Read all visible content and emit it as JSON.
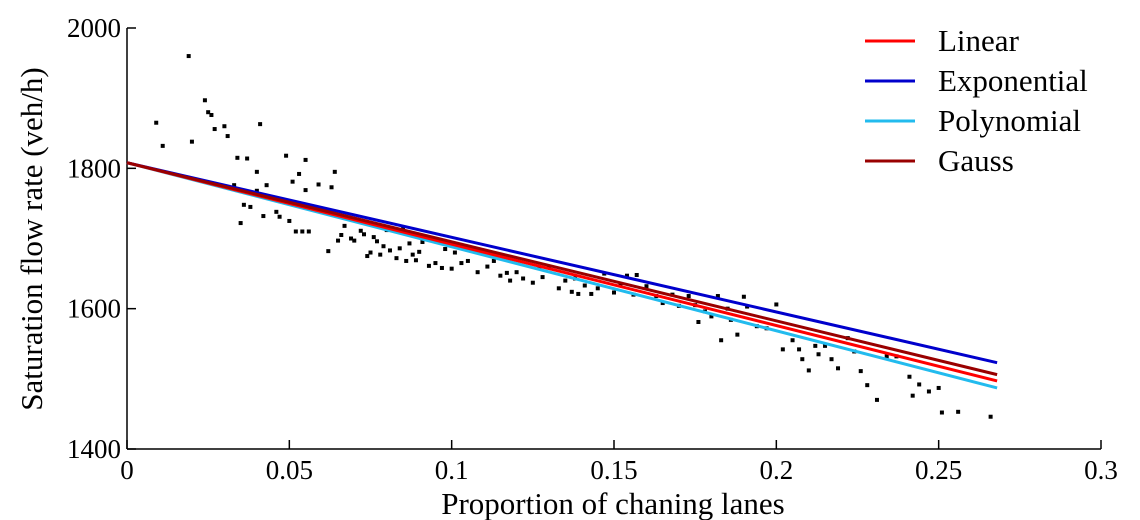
{
  "chart_data": {
    "type": "scatter",
    "title": "",
    "xlabel": "Proportion of chaning lanes",
    "ylabel": "Saturation flow rate (veh/h)",
    "xlim": [
      0,
      0.3
    ],
    "ylim": [
      1400,
      2000
    ],
    "xticks": [
      0,
      0.05,
      0.1,
      0.15,
      0.2,
      0.25,
      0.3
    ],
    "xtick_labels": [
      "0",
      "0.05",
      "0.1",
      "0.15",
      "0.2",
      "0.25",
      "0.3"
    ],
    "yticks": [
      1400,
      1600,
      1800,
      2000
    ],
    "ytick_labels": [
      "1400",
      "1600",
      "1800",
      "2000"
    ],
    "grid": false,
    "legend_position": "top-right",
    "points": {
      "color": "#000000",
      "x": [
        0.009,
        0.011,
        0.019,
        0.02,
        0.024,
        0.025,
        0.026,
        0.027,
        0.03,
        0.031,
        0.033,
        0.034,
        0.035,
        0.036,
        0.037,
        0.038,
        0.04,
        0.04,
        0.041,
        0.042,
        0.043,
        0.046,
        0.047,
        0.049,
        0.05,
        0.051,
        0.052,
        0.053,
        0.054,
        0.055,
        0.055,
        0.056,
        0.059,
        0.062,
        0.063,
        0.064,
        0.065,
        0.066,
        0.067,
        0.069,
        0.07,
        0.072,
        0.073,
        0.074,
        0.075,
        0.076,
        0.077,
        0.078,
        0.079,
        0.08,
        0.081,
        0.083,
        0.084,
        0.085,
        0.086,
        0.087,
        0.088,
        0.089,
        0.09,
        0.091,
        0.093,
        0.095,
        0.097,
        0.098,
        0.1,
        0.101,
        0.103,
        0.105,
        0.108,
        0.111,
        0.113,
        0.115,
        0.117,
        0.118,
        0.12,
        0.122,
        0.125,
        0.127,
        0.128,
        0.13,
        0.133,
        0.135,
        0.137,
        0.138,
        0.139,
        0.141,
        0.143,
        0.145,
        0.147,
        0.15,
        0.152,
        0.154,
        0.156,
        0.157,
        0.16,
        0.163,
        0.165,
        0.168,
        0.17,
        0.173,
        0.175,
        0.176,
        0.178,
        0.18,
        0.182,
        0.183,
        0.185,
        0.186,
        0.188,
        0.19,
        0.191,
        0.194,
        0.197,
        0.2,
        0.202,
        0.205,
        0.207,
        0.208,
        0.21,
        0.212,
        0.213,
        0.215,
        0.217,
        0.219,
        0.222,
        0.224,
        0.226,
        0.228,
        0.231,
        0.234,
        0.237,
        0.241,
        0.242,
        0.244,
        0.247,
        0.25,
        0.251,
        0.256,
        0.266
      ],
      "y": [
        1865,
        1832,
        1960,
        1838,
        1897,
        1880,
        1876,
        1856,
        1860,
        1846,
        1776,
        1815,
        1722,
        1748,
        1814,
        1745,
        1795,
        1768,
        1863,
        1732,
        1776,
        1738,
        1731,
        1818,
        1725,
        1781,
        1710,
        1792,
        1710,
        1812,
        1769,
        1710,
        1777,
        1682,
        1773,
        1795,
        1697,
        1705,
        1718,
        1700,
        1697,
        1711,
        1706,
        1675,
        1680,
        1702,
        1696,
        1677,
        1689,
        1712,
        1683,
        1672,
        1686,
        1713,
        1668,
        1693,
        1677,
        1669,
        1681,
        1695,
        1661,
        1665,
        1658,
        1685,
        1657,
        1680,
        1665,
        1668,
        1652,
        1660,
        1668,
        1647,
        1651,
        1640,
        1652,
        1643,
        1637,
        1658,
        1645,
        1660,
        1629,
        1640,
        1624,
        1643,
        1621,
        1633,
        1621,
        1629,
        1650,
        1623,
        1635,
        1647,
        1620,
        1648,
        1632,
        1618,
        1608,
        1620,
        1604,
        1618,
        1605,
        1581,
        1596,
        1589,
        1618,
        1555,
        1600,
        1584,
        1563,
        1617,
        1603,
        1575,
        1572,
        1606,
        1542,
        1555,
        1542,
        1528,
        1512,
        1547,
        1535,
        1547,
        1528,
        1515,
        1558,
        1539,
        1511,
        1491,
        1470,
        1532,
        1532,
        1503,
        1476,
        1492,
        1482,
        1487,
        1452,
        1453,
        1446
      ]
    },
    "series": [
      {
        "name": "Linear",
        "color": "#ff0000",
        "x": [
          0,
          0.268
        ],
        "y": [
          1808,
          1497
        ]
      },
      {
        "name": "Exponential",
        "color": "#0000cc",
        "x": [
          0,
          0.268
        ],
        "y": [
          1808,
          1523
        ]
      },
      {
        "name": "Polynomial",
        "color": "#22bbee",
        "x": [
          0,
          0.268
        ],
        "y": [
          1808,
          1487
        ]
      },
      {
        "name": "Gauss",
        "color": "#990000",
        "x": [
          0,
          0.268
        ],
        "y": [
          1808,
          1506
        ]
      }
    ]
  }
}
